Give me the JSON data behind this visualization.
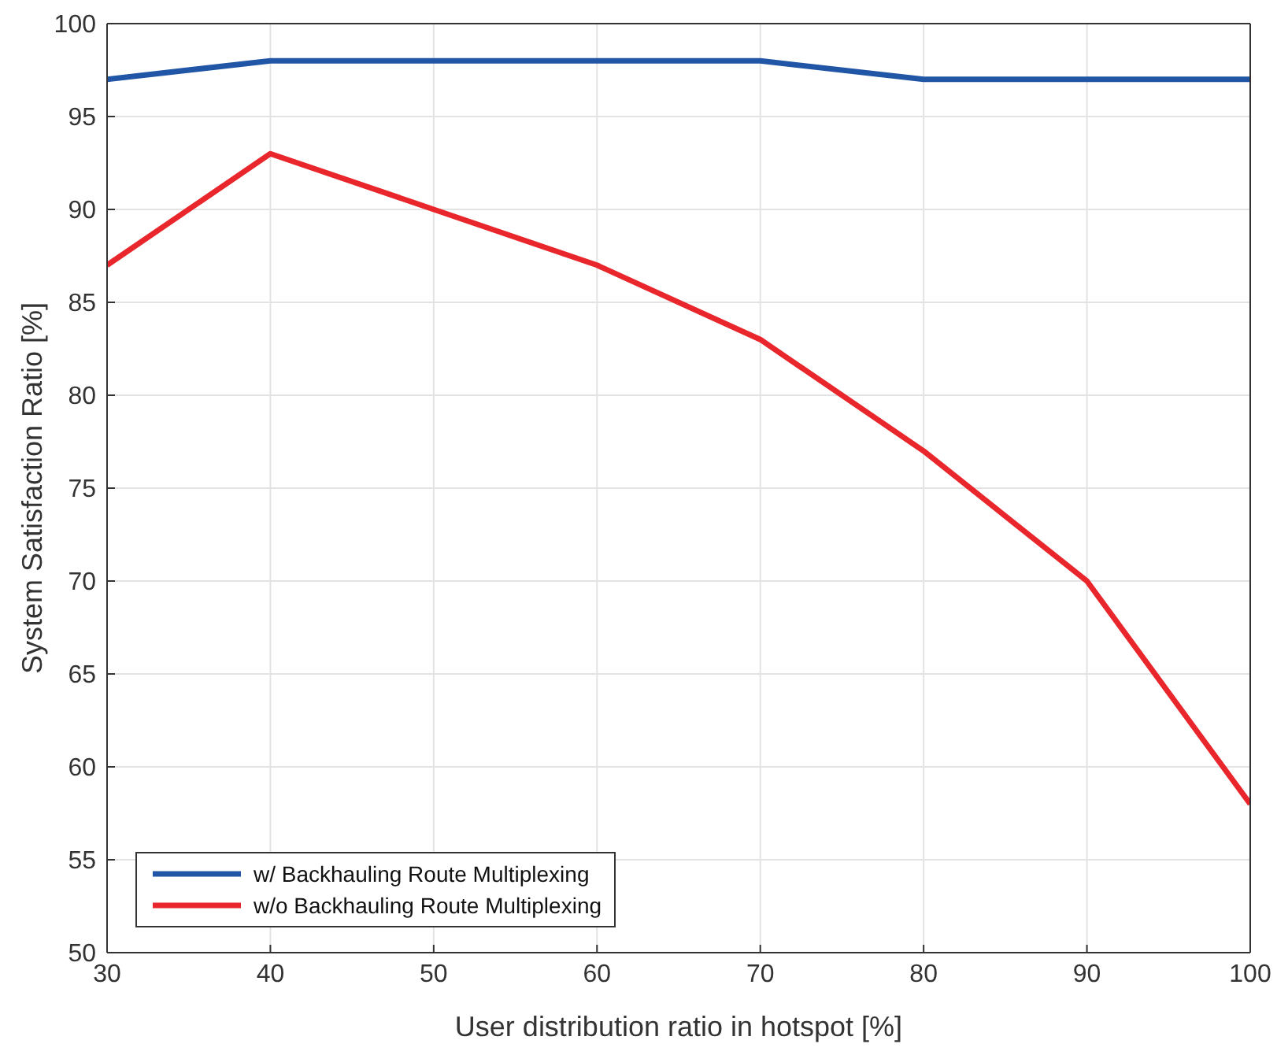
{
  "chart_data": {
    "type": "line",
    "xlabel": "User distribution ratio in hotspot [%]",
    "ylabel": "System Satisfaction Ratio [%]",
    "x": [
      30,
      40,
      50,
      60,
      70,
      80,
      90,
      100
    ],
    "series": [
      {
        "name": "w/ Backhauling Route Multiplexing",
        "color": "#2155a6",
        "values": [
          97,
          98,
          98,
          98,
          98,
          97,
          97,
          97
        ]
      },
      {
        "name": "w/o Backhauling Route Multiplexing",
        "color": "#e8262b",
        "values": [
          87,
          93,
          90,
          87,
          83,
          77,
          70,
          58
        ]
      }
    ],
    "xlim": [
      30,
      100
    ],
    "xticks": [
      30,
      40,
      50,
      60,
      70,
      80,
      90,
      100
    ],
    "ylim": [
      50,
      100
    ],
    "yticks": [
      50,
      55,
      60,
      65,
      70,
      75,
      80,
      85,
      90,
      95,
      100
    ],
    "grid": true,
    "legend": "bottom left",
    "marker": "none",
    "line_style": "solid"
  }
}
